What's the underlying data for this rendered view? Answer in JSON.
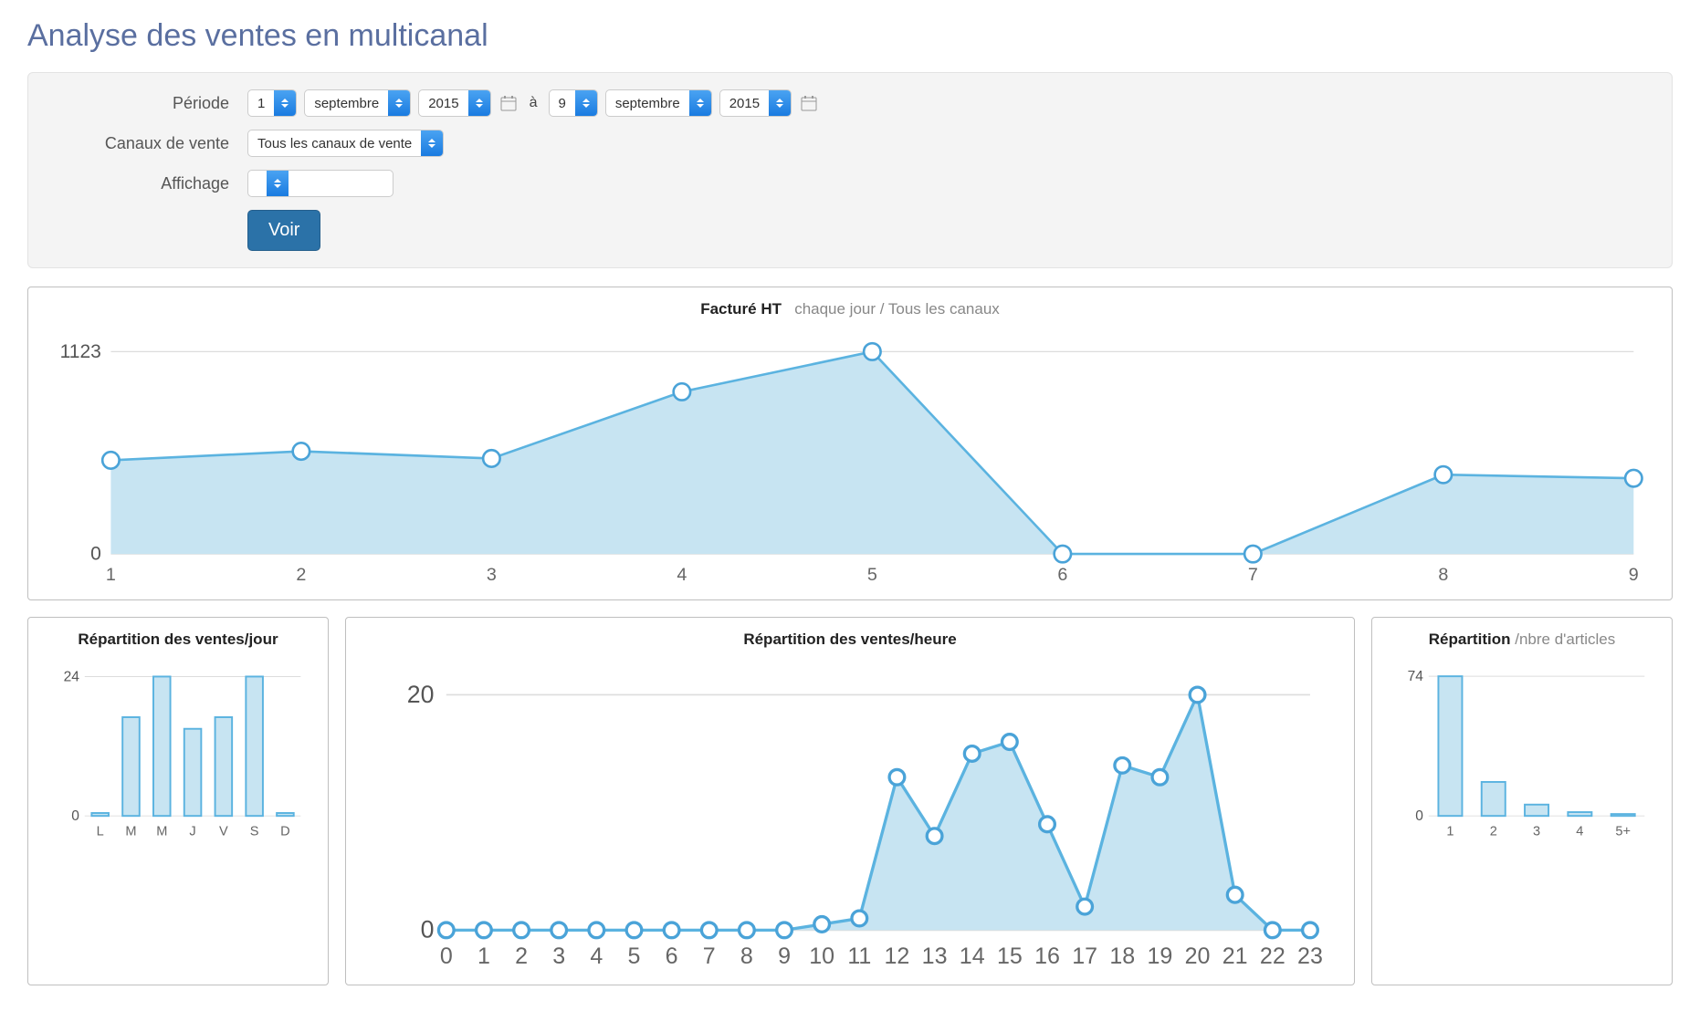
{
  "page": {
    "title": "Analyse des ventes en multicanal"
  },
  "filters": {
    "period_label": "Période",
    "channels_label": "Canaux de vente",
    "display_label": "Affichage",
    "date_from": {
      "day": "1",
      "month": "septembre",
      "year": "2015"
    },
    "date_sep": "à",
    "date_to": {
      "day": "9",
      "month": "septembre",
      "year": "2015"
    },
    "channels_value": "Tous les canaux de vente",
    "display_value": "",
    "submit_label": "Voir"
  },
  "colors": {
    "area_fill": "#c7e4f2",
    "line_stroke": "#5bb3e0",
    "marker_stroke": "#4aa3d8",
    "marker_fill": "#ffffff",
    "bar_fill": "#c7e4f2",
    "bar_stroke": "#5bb3e0",
    "grid": "#dddddd",
    "axis_text": "#666666",
    "card_border": "#bfbfbf"
  },
  "main_chart": {
    "type": "area-line",
    "title_bold": "Facturé HT",
    "title_sub": "chaque jour / Tous les canaux",
    "x_labels": [
      "1",
      "2",
      "3",
      "4",
      "5",
      "6",
      "7",
      "8",
      "9"
    ],
    "values": [
      520,
      570,
      530,
      900,
      1123,
      0,
      0,
      440,
      420
    ],
    "y_ticks": [
      0,
      1123
    ],
    "ylim": [
      0,
      1200
    ],
    "marker_radius": 7,
    "line_width": 2
  },
  "day_chart": {
    "type": "bar",
    "title_bold": "Répartition des ventes/jour",
    "title_sub": "",
    "x_labels": [
      "L",
      "M",
      "M",
      "J",
      "V",
      "S",
      "D"
    ],
    "values": [
      0.5,
      17,
      24,
      15,
      17,
      24,
      0.5
    ],
    "y_ticks": [
      0,
      24
    ],
    "ylim": [
      0,
      26
    ],
    "bar_width": 0.55
  },
  "hour_chart": {
    "type": "area-line",
    "title_bold": "Répartition des ventes/heure",
    "title_sub": "",
    "x_labels": [
      "0",
      "1",
      "2",
      "3",
      "4",
      "5",
      "6",
      "7",
      "8",
      "9",
      "10",
      "11",
      "12",
      "13",
      "14",
      "15",
      "16",
      "17",
      "18",
      "19",
      "20",
      "21",
      "22",
      "23"
    ],
    "values": [
      0,
      0,
      0,
      0,
      0,
      0,
      0,
      0,
      0,
      0,
      0.5,
      1,
      13,
      8,
      15,
      16,
      9,
      2,
      14,
      13,
      20,
      3,
      0,
      0
    ],
    "y_ticks": [
      0,
      20
    ],
    "ylim": [
      0,
      22
    ],
    "marker_radius": 5,
    "line_width": 2
  },
  "articles_chart": {
    "type": "bar",
    "title_bold": "Répartition",
    "title_sub": "/nbre d'articles",
    "x_labels": [
      "1",
      "2",
      "3",
      "4",
      "5+"
    ],
    "values": [
      74,
      18,
      6,
      2,
      1
    ],
    "y_ticks": [
      0,
      74
    ],
    "ylim": [
      0,
      80
    ],
    "bar_width": 0.55
  }
}
